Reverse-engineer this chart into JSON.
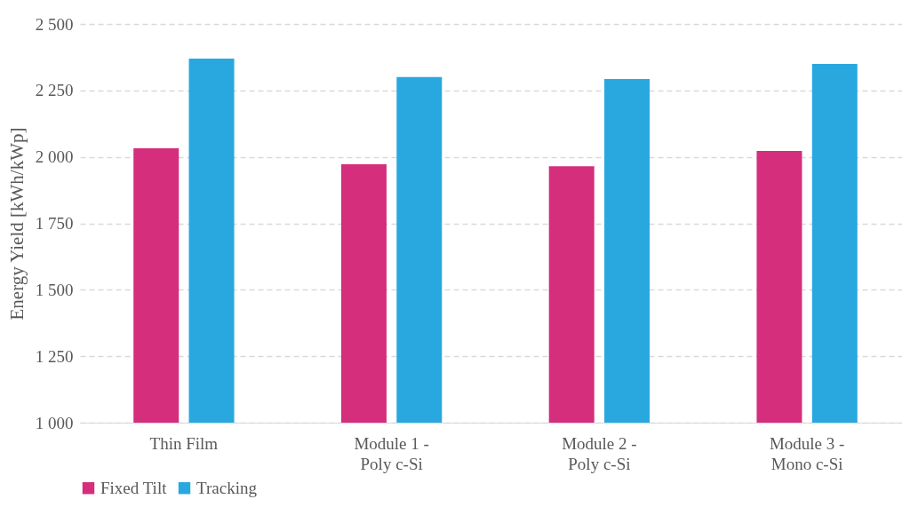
{
  "chart_data": {
    "type": "bar",
    "ylabel": "Energy Yield [kWh/kWp]",
    "categories": [
      "Thin Film",
      "Module 1 -\nPoly c-Si",
      "Module 2 -\nPoly c-Si",
      "Module 3 -\nMono c-Si"
    ],
    "series": [
      {
        "name": "Fixed Tilt",
        "color": "#d42e7c",
        "values": [
          2032,
          1972,
          1965,
          2022
        ]
      },
      {
        "name": "Tracking",
        "color": "#29a8e0",
        "values": [
          2370,
          2300,
          2293,
          2350
        ]
      }
    ],
    "ylim": [
      1000,
      2500
    ],
    "yticks": [
      {
        "value": 1000,
        "label": "1 000"
      },
      {
        "value": 1250,
        "label": "1 250"
      },
      {
        "value": 1500,
        "label": "1 500"
      },
      {
        "value": 1750,
        "label": "1 750"
      },
      {
        "value": 2000,
        "label": "2 000"
      },
      {
        "value": 2250,
        "label": "2 250"
      },
      {
        "value": 2500,
        "label": "2 500"
      }
    ],
    "grid": "y",
    "legend": "bottom"
  }
}
